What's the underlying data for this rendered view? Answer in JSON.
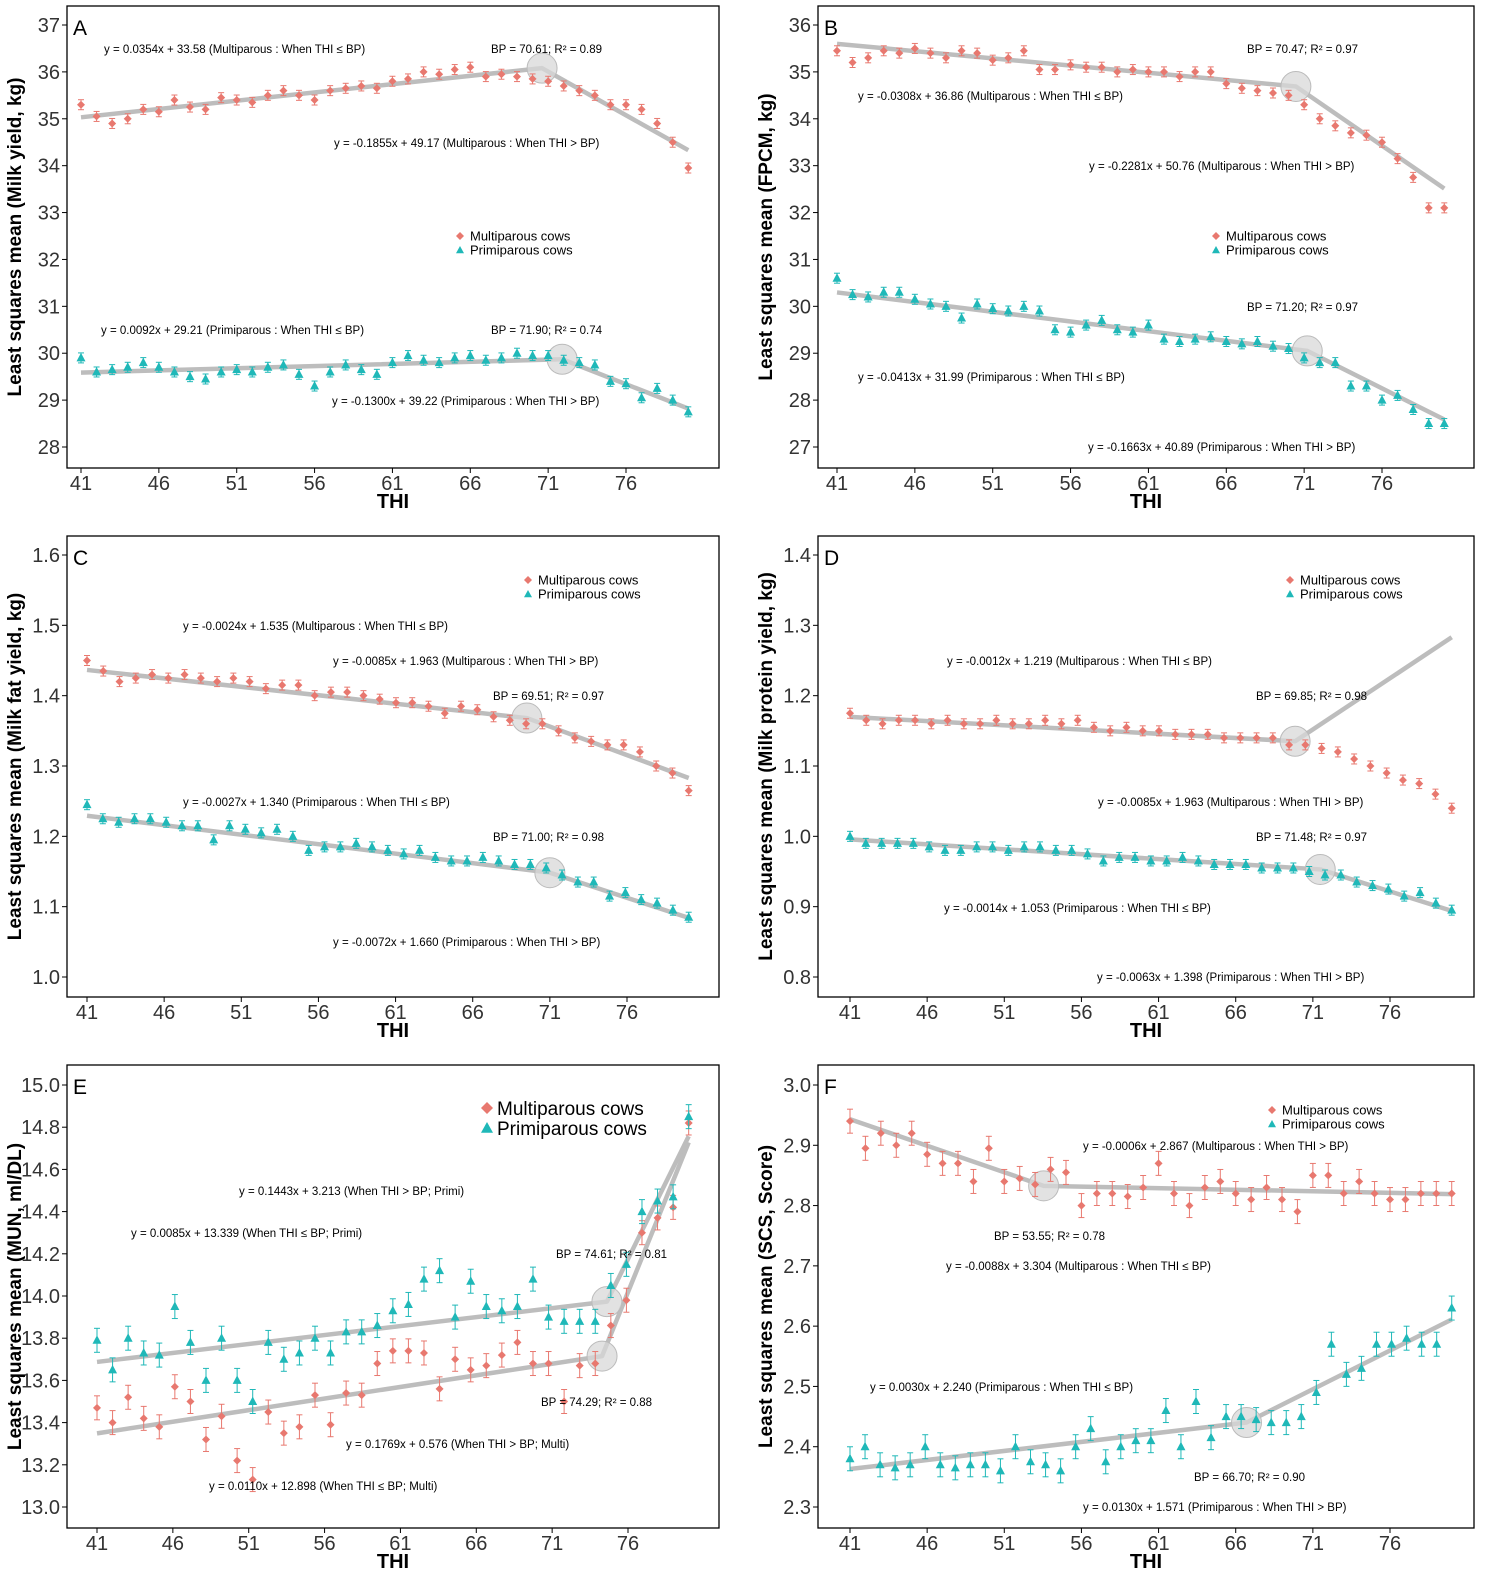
{
  "figure": {
    "legend_multi": "Multiparous cows",
    "legend_primi": "Primiparous cows",
    "xlabel": "THI",
    "colors": {
      "multi": "#E8786F",
      "primi": "#1FB8B8",
      "fit": "#BDBDBD",
      "bp": "#D8D8D8"
    }
  },
  "chart_data": [
    {
      "panel": "A",
      "type": "scatter",
      "xlabel": "THI",
      "ylabel": "Least squares mean (Milk yield, kg)",
      "xlim": [
        40,
        81
      ],
      "ylim": [
        27.6,
        37.3
      ],
      "xticks": [
        41,
        46,
        51,
        56,
        61,
        66,
        71,
        76
      ],
      "yticks": [
        28,
        29,
        30,
        31,
        32,
        33,
        34,
        35,
        36,
        37
      ],
      "series": [
        {
          "name": "Multiparous cows",
          "key": "multi",
          "y": [
            35.3,
            35.05,
            34.9,
            35.0,
            35.2,
            35.15,
            35.4,
            35.25,
            35.2,
            35.45,
            35.4,
            35.35,
            35.5,
            35.6,
            35.5,
            35.4,
            35.6,
            35.65,
            35.7,
            35.65,
            35.8,
            35.85,
            36.0,
            35.95,
            36.05,
            36.1,
            35.9,
            35.95,
            35.9,
            35.85,
            35.8,
            35.7,
            35.6,
            35.5,
            35.3,
            35.3,
            35.2,
            34.9,
            34.5,
            33.95
          ],
          "breakpoint": 70.61,
          "fit_left": [
            0.0354,
            33.58
          ],
          "fit_right": [
            -0.1855,
            49.17
          ]
        },
        {
          "name": "Primiparous cows",
          "key": "primi",
          "y": [
            29.9,
            29.6,
            29.65,
            29.7,
            29.8,
            29.7,
            29.6,
            29.5,
            29.45,
            29.6,
            29.65,
            29.6,
            29.7,
            29.75,
            29.55,
            29.3,
            29.6,
            29.75,
            29.65,
            29.55,
            29.8,
            29.95,
            29.85,
            29.8,
            29.9,
            29.95,
            29.85,
            29.9,
            30.0,
            29.95,
            29.95,
            29.85,
            29.8,
            29.75,
            29.4,
            29.35,
            29.05,
            29.25,
            29.0,
            28.75
          ],
          "breakpoint": 71.9,
          "fit_left": [
            0.0092,
            29.21
          ],
          "fit_right": [
            -0.13,
            39.22
          ]
        }
      ],
      "annotations": [
        "y = 0.0354x + 33.58 (Multiparous : When THI ≤ BP)",
        "BP = 70.61; R² = 0.89",
        "y = -0.1855x + 49.17 (Multiparous : When THI > BP)",
        "y = 0.0092x + 29.21 (Primiparous : When THI ≤ BP)",
        "BP = 71.90; R² = 0.74",
        "y = -0.1300x + 39.22 (Primiparous : When THI > BP)"
      ]
    },
    {
      "panel": "B",
      "type": "scatter",
      "xlabel": "THI",
      "ylabel": "Least squares mean (FPCM, kg)",
      "xlim": [
        40,
        81
      ],
      "ylim": [
        26.6,
        36.3
      ],
      "xticks": [
        41,
        46,
        51,
        56,
        61,
        66,
        71,
        76
      ],
      "yticks": [
        27,
        28,
        29,
        30,
        31,
        32,
        33,
        34,
        35,
        36
      ],
      "series": [
        {
          "name": "Multiparous cows",
          "key": "multi",
          "y": [
            35.45,
            35.2,
            35.3,
            35.45,
            35.4,
            35.5,
            35.4,
            35.3,
            35.45,
            35.4,
            35.25,
            35.3,
            35.45,
            35.05,
            35.05,
            35.15,
            35.1,
            35.1,
            35.0,
            35.05,
            35.0,
            35.0,
            34.9,
            35.0,
            35.0,
            34.75,
            34.65,
            34.6,
            34.55,
            34.5,
            34.3,
            34.0,
            33.85,
            33.7,
            33.65,
            33.5,
            33.15,
            32.75,
            32.1,
            32.1
          ],
          "breakpoint": 70.47,
          "fit_left": [
            -0.0308,
            36.86
          ],
          "fit_right": [
            -0.2281,
            50.76
          ]
        },
        {
          "name": "Primiparous cows",
          "key": "primi",
          "y": [
            30.6,
            30.25,
            30.2,
            30.3,
            30.3,
            30.15,
            30.05,
            30.0,
            29.75,
            30.05,
            29.95,
            29.9,
            30.0,
            29.9,
            29.5,
            29.45,
            29.6,
            29.7,
            29.5,
            29.45,
            29.6,
            29.3,
            29.25,
            29.3,
            29.35,
            29.25,
            29.2,
            29.25,
            29.15,
            29.1,
            28.9,
            28.8,
            28.8,
            28.3,
            28.3,
            28.0,
            28.1,
            27.8,
            27.5,
            27.5
          ],
          "breakpoint": 71.2,
          "fit_left": [
            -0.0413,
            31.99
          ],
          "fit_right": [
            -0.1663,
            40.89
          ]
        }
      ],
      "annotations": [
        "BP = 70.47; R² = 0.97",
        "y = -0.0308x + 36.86 (Multiparous : When THI ≤ BP)",
        "y = -0.2281x + 50.76 (Multiparous : When THI > BP)",
        "BP = 71.20; R² = 0.97",
        "y = -0.0413x + 31.99 (Primiparous : When THI ≤ BP)",
        "y = -0.1663x + 40.89 (Primiparous : When THI > BP)"
      ]
    },
    {
      "panel": "C",
      "type": "scatter",
      "xlabel": "THI",
      "ylabel": "Least squares mean (Milk fat yield, kg)",
      "xlim": [
        40,
        81
      ],
      "ylim": [
        0.97,
        1.63
      ],
      "xticks": [
        41,
        46,
        51,
        56,
        61,
        66,
        71,
        76
      ],
      "yticks": [
        1.0,
        1.1,
        1.2,
        1.3,
        1.4,
        1.5,
        1.6
      ],
      "series": [
        {
          "name": "Multiparous cows",
          "key": "multi",
          "y": [
            1.45,
            1.435,
            1.42,
            1.425,
            1.43,
            1.425,
            1.43,
            1.425,
            1.42,
            1.425,
            1.42,
            1.41,
            1.415,
            1.415,
            1.4,
            1.405,
            1.405,
            1.4,
            1.395,
            1.39,
            1.39,
            1.385,
            1.375,
            1.385,
            1.38,
            1.37,
            1.365,
            1.36,
            1.36,
            1.35,
            1.34,
            1.335,
            1.33,
            1.33,
            1.32,
            1.3,
            1.29,
            1.265
          ],
          "breakpoint": 69.51,
          "fit_left": [
            -0.0024,
            1.535
          ],
          "fit_right": [
            -0.0085,
            1.963
          ]
        },
        {
          "name": "Primiparous cows",
          "key": "primi",
          "y": [
            1.245,
            1.225,
            1.22,
            1.225,
            1.225,
            1.22,
            1.215,
            1.215,
            1.195,
            1.215,
            1.21,
            1.205,
            1.21,
            1.2,
            1.18,
            1.185,
            1.185,
            1.19,
            1.185,
            1.18,
            1.175,
            1.18,
            1.17,
            1.165,
            1.165,
            1.17,
            1.165,
            1.16,
            1.16,
            1.155,
            1.145,
            1.135,
            1.135,
            1.115,
            1.12,
            1.11,
            1.105,
            1.095,
            1.085
          ],
          "breakpoint": 71.0,
          "fit_left": [
            -0.0027,
            1.34
          ],
          "fit_right": [
            -0.0072,
            1.66
          ]
        }
      ],
      "annotations": [
        "y = -0.0024x + 1.535 (Multiparous : When THI ≤ BP)",
        "y =  -0.0085x + 1.963 (Multiparous : When THI > BP)",
        "BP = 69.51; R² = 0.97",
        "y = -0.0027x + 1.340 (Primiparous : When THI ≤ BP)",
        "BP = 71.00; R² = 0.98",
        "y = -0.0072x + 1.660 (Primiparous : When THI > BP)"
      ]
    },
    {
      "panel": "D",
      "type": "scatter",
      "xlabel": "THI",
      "ylabel": "Least squares mean (Milk protein yield, kg)",
      "xlim": [
        40,
        81
      ],
      "ylim": [
        0.77,
        1.43
      ],
      "xticks": [
        41,
        46,
        51,
        56,
        61,
        66,
        71,
        76
      ],
      "yticks": [
        0.8,
        0.9,
        1.0,
        1.1,
        1.2,
        1.3,
        1.4
      ],
      "series": [
        {
          "name": "Multiparous cows",
          "key": "multi",
          "y": [
            1.175,
            1.165,
            1.16,
            1.165,
            1.165,
            1.16,
            1.165,
            1.16,
            1.16,
            1.165,
            1.16,
            1.16,
            1.165,
            1.16,
            1.165,
            1.155,
            1.15,
            1.155,
            1.15,
            1.15,
            1.145,
            1.145,
            1.145,
            1.14,
            1.14,
            1.14,
            1.14,
            1.13,
            1.13,
            1.125,
            1.12,
            1.11,
            1.1,
            1.09,
            1.08,
            1.075,
            1.06,
            1.04
          ],
          "breakpoint": 69.85,
          "fit_left": [
            -0.0012,
            1.219
          ],
          "fit_right": [
            -0.0085,
            1.963
          ]
        },
        {
          "name": "Primiparous cows",
          "key": "primi",
          "y": [
            1.0,
            0.99,
            0.99,
            0.99,
            0.99,
            0.985,
            0.98,
            0.98,
            0.985,
            0.985,
            0.98,
            0.985,
            0.985,
            0.98,
            0.98,
            0.975,
            0.965,
            0.97,
            0.97,
            0.965,
            0.965,
            0.97,
            0.965,
            0.96,
            0.96,
            0.96,
            0.955,
            0.955,
            0.955,
            0.95,
            0.945,
            0.945,
            0.935,
            0.93,
            0.925,
            0.915,
            0.92,
            0.905,
            0.895
          ],
          "breakpoint": 71.48,
          "fit_left": [
            -0.0014,
            1.053
          ],
          "fit_right": [
            -0.0063,
            1.398
          ]
        }
      ],
      "annotations": [
        "y = -0.0012x + 1.219 (Multiparous : When THI ≤ BP)",
        "BP = 69.85; R² = 0.98",
        "y = -0.0085x + 1.963 (Multiparous : When THI > BP)",
        "BP = 71.48; R² = 0.97",
        "y = -0.0014x + 1.053 (Primiparous : When THI ≤  BP)",
        "y = -0.0063x + 1.398 (Primiparous : When THI > BP)"
      ]
    },
    {
      "panel": "E",
      "type": "scatter",
      "xlabel": "THI",
      "ylabel": "Least squares mean (MUN, ml/DL)",
      "xlim": [
        40,
        81
      ],
      "ylim": [
        12.9,
        15.1
      ],
      "xticks": [
        41,
        46,
        51,
        56,
        61,
        66,
        71,
        76
      ],
      "yticks": [
        13.0,
        13.2,
        13.4,
        13.6,
        13.8,
        14.0,
        14.2,
        14.4,
        14.6,
        14.8,
        15.0
      ],
      "series": [
        {
          "name": "Multiparous cows",
          "key": "multi",
          "y": [
            13.47,
            13.4,
            13.52,
            13.42,
            13.38,
            13.57,
            13.5,
            13.32,
            13.43,
            13.22,
            13.13,
            13.45,
            13.35,
            13.38,
            13.53,
            13.39,
            13.54,
            13.53,
            13.68,
            13.74,
            13.74,
            13.73,
            13.56,
            13.7,
            13.65,
            13.67,
            13.72,
            13.78,
            13.68,
            13.68,
            13.5,
            13.67,
            13.68,
            13.86,
            13.98,
            14.3,
            14.37,
            14.42,
            14.82
          ],
          "breakpoint": 74.29,
          "fit_left": [
            0.011,
            12.898
          ],
          "fit_right": [
            0.1769,
            0.576
          ]
        },
        {
          "name": "Primiparous cows",
          "key": "primi",
          "y": [
            13.79,
            13.65,
            13.8,
            13.73,
            13.72,
            13.95,
            13.78,
            13.6,
            13.8,
            13.6,
            13.5,
            13.78,
            13.7,
            13.73,
            13.8,
            13.73,
            13.83,
            13.83,
            13.86,
            13.93,
            13.96,
            14.08,
            14.12,
            13.9,
            14.07,
            13.95,
            13.93,
            13.95,
            14.08,
            13.9,
            13.88,
            13.88,
            13.88,
            14.05,
            14.15,
            14.4,
            14.45,
            14.47,
            14.85
          ],
          "breakpoint": 74.61,
          "fit_left": [
            0.0085,
            13.339
          ],
          "fit_right": [
            0.1443,
            3.213
          ]
        }
      ],
      "annotations": [
        "y = 0.1443x + 3.213 (When THI > BP; Primi)",
        "y = 0.0085x + 13.339 (When THI ≤ BP; Primi)",
        "BP = 74.61; R² = 0.81",
        "BP = 74.29; R² = 0.88",
        "y = 0.1769x + 0.576 (When THI > BP; Multi)",
        "y = 0.0110x + 12.898 (When THI ≤ BP; Multi)"
      ]
    },
    {
      "panel": "F",
      "type": "scatter",
      "xlabel": "THI",
      "ylabel": "Least squares mean (SCS, Score)",
      "xlim": [
        40,
        81
      ],
      "ylim": [
        2.285,
        3.035
      ],
      "xticks": [
        41,
        46,
        51,
        56,
        61,
        66,
        71,
        76
      ],
      "yticks": [
        2.3,
        2.4,
        2.5,
        2.6,
        2.7,
        2.8,
        2.9,
        3.0
      ],
      "series": [
        {
          "name": "Multiparous cows",
          "key": "multi",
          "y": [
            2.94,
            2.895,
            2.92,
            2.9,
            2.92,
            2.885,
            2.87,
            2.87,
            2.84,
            2.895,
            2.84,
            2.845,
            2.835,
            2.86,
            2.855,
            2.8,
            2.82,
            2.82,
            2.815,
            2.83,
            2.87,
            2.82,
            2.8,
            2.83,
            2.84,
            2.82,
            2.81,
            2.83,
            2.81,
            2.79,
            2.85,
            2.85,
            2.82,
            2.84,
            2.82,
            2.81,
            2.81,
            2.82,
            2.82,
            2.82
          ],
          "breakpoint": 53.55,
          "fit_left": [
            -0.0088,
            3.304
          ],
          "fit_right": [
            -0.0006,
            2.867
          ]
        },
        {
          "name": "Primiparous cows",
          "key": "primi",
          "y": [
            2.38,
            2.4,
            2.37,
            2.365,
            2.37,
            2.4,
            2.37,
            2.365,
            2.37,
            2.37,
            2.36,
            2.4,
            2.375,
            2.37,
            2.36,
            2.4,
            2.43,
            2.375,
            2.4,
            2.41,
            2.41,
            2.46,
            2.4,
            2.475,
            2.415,
            2.45,
            2.45,
            2.445,
            2.44,
            2.44,
            2.45,
            2.49,
            2.57,
            2.52,
            2.53,
            2.57,
            2.57,
            2.58,
            2.57,
            2.57,
            2.63
          ],
          "breakpoint": 66.7,
          "fit_left": [
            0.003,
            2.24
          ],
          "fit_right": [
            0.013,
            1.571
          ]
        }
      ],
      "annotations": [
        "y = -0.0006x + 2.867 (Multiparous : When THI > BP)",
        "BP = 53.55; R² = 0.78",
        "y = -0.0088x + 3.304 (Multiparous : When THI ≤ BP)",
        "y = 0.0030x + 2.240 (Primiparous : When THI ≤ BP)",
        "BP = 66.70; R² = 0.90",
        "y = 0.0130x + 1.571 (Primiparous : When THI > BP)"
      ]
    }
  ]
}
